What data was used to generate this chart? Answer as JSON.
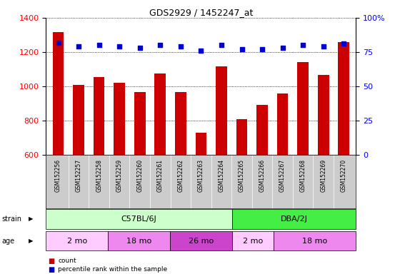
{
  "title": "GDS2929 / 1452247_at",
  "samples": [
    "GSM152256",
    "GSM152257",
    "GSM152258",
    "GSM152259",
    "GSM152260",
    "GSM152261",
    "GSM152262",
    "GSM152263",
    "GSM152264",
    "GSM152265",
    "GSM152266",
    "GSM152267",
    "GSM152268",
    "GSM152269",
    "GSM152270"
  ],
  "counts": [
    1315,
    1010,
    1055,
    1020,
    968,
    1075,
    968,
    730,
    1115,
    808,
    893,
    960,
    1140,
    1068,
    1260
  ],
  "percentile": [
    82,
    79,
    80,
    79,
    78,
    80,
    79,
    76,
    80,
    77,
    77,
    78,
    80,
    79,
    81
  ],
  "ylim_left": [
    600,
    1400
  ],
  "ylim_right": [
    0,
    100
  ],
  "yticks_left": [
    600,
    800,
    1000,
    1200,
    1400
  ],
  "yticks_right": [
    0,
    25,
    50,
    75,
    100
  ],
  "bar_color": "#cc0000",
  "dot_color": "#0000cc",
  "grid_color": "#000000",
  "strain_groups": [
    {
      "label": "C57BL/6J",
      "start": 0,
      "end": 9,
      "color": "#ccffcc"
    },
    {
      "label": "DBA/2J",
      "start": 9,
      "end": 15,
      "color": "#44ee44"
    }
  ],
  "age_groups": [
    {
      "label": "2 mo",
      "start": 0,
      "end": 3,
      "color": "#ffccff"
    },
    {
      "label": "18 mo",
      "start": 3,
      "end": 6,
      "color": "#ee88ee"
    },
    {
      "label": "26 mo",
      "start": 6,
      "end": 9,
      "color": "#cc44cc"
    },
    {
      "label": "2 mo",
      "start": 9,
      "end": 11,
      "color": "#ffccff"
    },
    {
      "label": "18 mo",
      "start": 11,
      "end": 15,
      "color": "#ee88ee"
    }
  ],
  "xtick_bg": "#cccccc",
  "fig_bg": "#ffffff"
}
